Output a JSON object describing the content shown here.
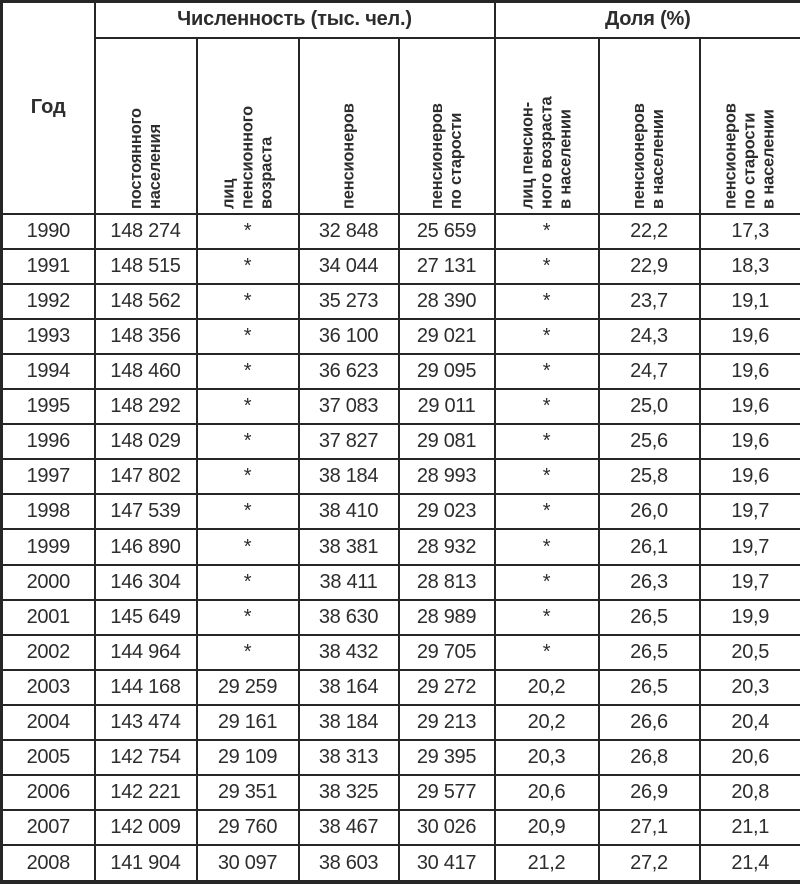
{
  "table": {
    "corner_header": "Год",
    "group_headers": [
      "Численность (тыс. чел.)",
      "Доля (%)"
    ],
    "columns": [
      "постоянного\nнаселения",
      "лиц\nпенсионного\nвозраста",
      "пенсионеров",
      "пенсионеров\nпо старости",
      "лиц пенсион-\nного возраста\nв населении",
      "пенсионеров\nв населении",
      "пенсионеров\nпо старости\nв населении"
    ],
    "rows": [
      [
        "1990",
        "148 274",
        "*",
        "32 848",
        "25 659",
        "*",
        "22,2",
        "17,3"
      ],
      [
        "1991",
        "148 515",
        "*",
        "34 044",
        "27 131",
        "*",
        "22,9",
        "18,3"
      ],
      [
        "1992",
        "148 562",
        "*",
        "35 273",
        "28 390",
        "*",
        "23,7",
        "19,1"
      ],
      [
        "1993",
        "148 356",
        "*",
        "36 100",
        "29 021",
        "*",
        "24,3",
        "19,6"
      ],
      [
        "1994",
        "148 460",
        "*",
        "36 623",
        "29 095",
        "*",
        "24,7",
        "19,6"
      ],
      [
        "1995",
        "148 292",
        "*",
        "37 083",
        "29 011",
        "*",
        "25,0",
        "19,6"
      ],
      [
        "1996",
        "148 029",
        "*",
        "37 827",
        "29 081",
        "*",
        "25,6",
        "19,6"
      ],
      [
        "1997",
        "147 802",
        "*",
        "38 184",
        "28 993",
        "*",
        "25,8",
        "19,6"
      ],
      [
        "1998",
        "147 539",
        "*",
        "38 410",
        "29 023",
        "*",
        "26,0",
        "19,7"
      ],
      [
        "1999",
        "146 890",
        "*",
        "38 381",
        "28 932",
        "*",
        "26,1",
        "19,7"
      ],
      [
        "2000",
        "146 304",
        "*",
        "38 411",
        "28 813",
        "*",
        "26,3",
        "19,7"
      ],
      [
        "2001",
        "145 649",
        "*",
        "38 630",
        "28 989",
        "*",
        "26,5",
        "19,9"
      ],
      [
        "2002",
        "144 964",
        "*",
        "38 432",
        "29 705",
        "*",
        "26,5",
        "20,5"
      ],
      [
        "2003",
        "144 168",
        "29 259",
        "38 164",
        "29 272",
        "20,2",
        "26,5",
        "20,3"
      ],
      [
        "2004",
        "143 474",
        "29 161",
        "38 184",
        "29 213",
        "20,2",
        "26,6",
        "20,4"
      ],
      [
        "2005",
        "142 754",
        "29 109",
        "38 313",
        "29 395",
        "20,3",
        "26,8",
        "20,6"
      ],
      [
        "2006",
        "142 221",
        "29 351",
        "38 325",
        "29 577",
        "20,6",
        "26,9",
        "20,8"
      ],
      [
        "2007",
        "142 009",
        "29 760",
        "38 467",
        "30 026",
        "20,9",
        "27,1",
        "21,1"
      ],
      [
        "2008",
        "141 904",
        "30 097",
        "38 603",
        "30 417",
        "21,2",
        "27,2",
        "21,4"
      ]
    ]
  }
}
